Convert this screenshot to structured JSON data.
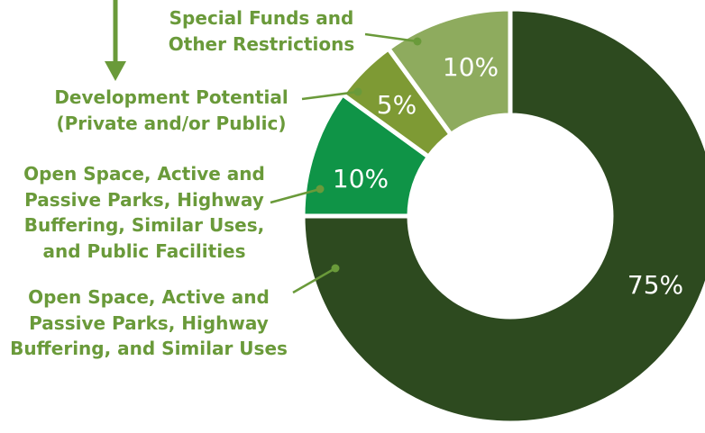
{
  "chart_data": {
    "type": "donut",
    "categories": [
      "Open Space, Active and\nPassive Parks, Highway\nBuffering, and Similar Uses",
      "Open Space, Active and\nPassive Parks, Highway\nBuffering, Similar Uses,\nand Public Facilities",
      "Development Potential\n(Private and/or Public)",
      "Special Funds and\nOther Restrictions"
    ],
    "values": [
      75,
      10,
      5,
      10
    ],
    "value_labels": [
      "75%",
      "10%",
      "5%",
      "10%"
    ],
    "colors": [
      "#2d4a1f",
      "#0f9447",
      "#7e9a34",
      "#8eab5e"
    ]
  }
}
